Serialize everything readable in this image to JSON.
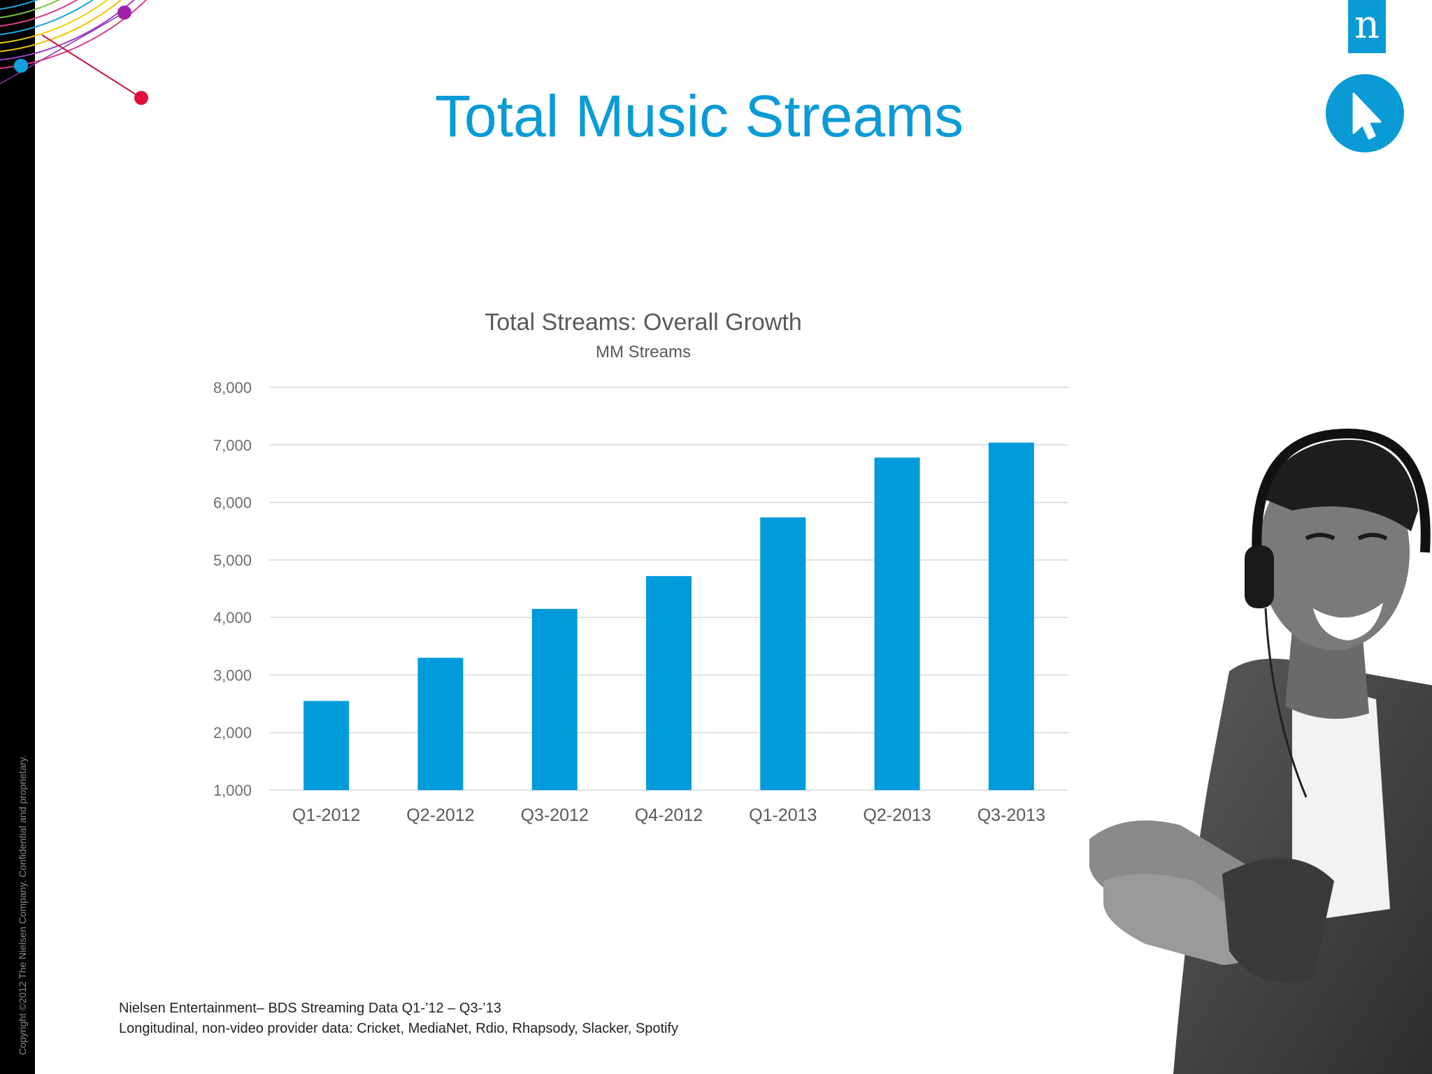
{
  "sidebar": {
    "copyright": "Copyright ©2012 The Nielsen Company. Confidential and proprietary."
  },
  "header": {
    "title": "Total Music Streams",
    "logo_letter": "n",
    "accent": "#0a9bd6"
  },
  "chart_data": {
    "type": "bar",
    "title": "Total Streams: Overall Growth",
    "subtitle": "MM Streams",
    "categories": [
      "Q1-2012",
      "Q2-2012",
      "Q3-2012",
      "Q4-2012",
      "Q1-2013",
      "Q2-2013",
      "Q3-2013"
    ],
    "values": [
      2550,
      3300,
      4150,
      4720,
      5740,
      6780,
      7040
    ],
    "ylim": [
      1000,
      8000
    ],
    "yticks": [
      "1,000",
      "2,000",
      "3,000",
      "4,000",
      "5,000",
      "6,000",
      "7,000",
      "8,000"
    ],
    "ytick_values": [
      1000,
      2000,
      3000,
      4000,
      5000,
      6000,
      7000,
      8000
    ],
    "grid": true,
    "bar_color": "#009bdb",
    "legend": "none"
  },
  "footnote": {
    "line1": "Nielsen Entertainment– BDS Streaming Data Q1-’12 – Q3-’13",
    "line2": "Longitudinal, non-video provider data: Cricket, MediaNet, Rdio, Rhapsody, Slacker, Spotify"
  },
  "icons": {
    "cursor": "cursor-arrow-icon",
    "logo": "nielsen-logo-icon"
  }
}
